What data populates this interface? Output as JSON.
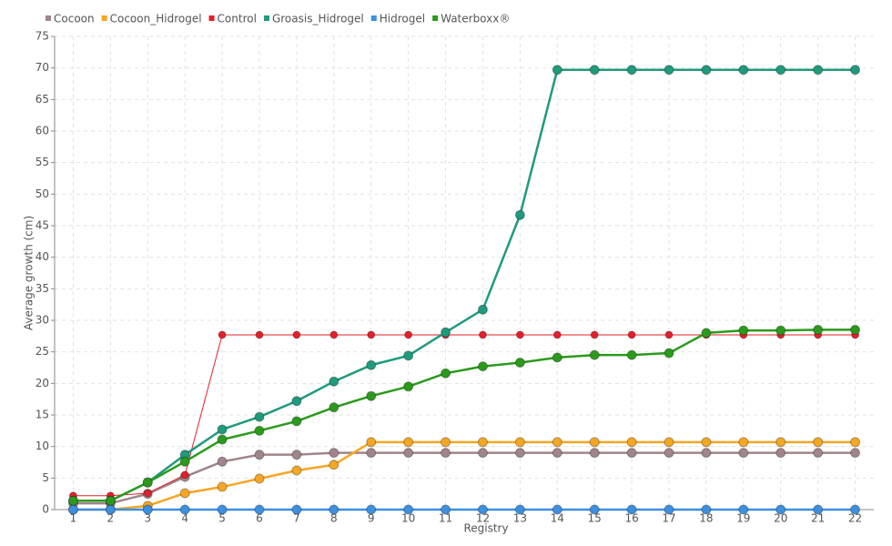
{
  "chart_data": {
    "type": "line",
    "x_label": "Registry",
    "y_label": "Average growth (cm)",
    "categories": [
      "1",
      "2",
      "3",
      "4",
      "5",
      "6",
      "7",
      "8",
      "9",
      "10",
      "11",
      "12",
      "13",
      "14",
      "15",
      "16",
      "17",
      "18",
      "19",
      "20",
      "21",
      "22"
    ],
    "ylim": [
      0,
      75
    ],
    "yticks": [
      0,
      5,
      10,
      15,
      20,
      25,
      30,
      35,
      40,
      45,
      50,
      55,
      60,
      65,
      70,
      75
    ],
    "grid": true,
    "legend": "top-left",
    "series": [
      {
        "name": "Cocoon",
        "color": "#a0858a",
        "values": [
          1.0,
          1.0,
          2.5,
          5.2,
          7.6,
          8.7,
          8.7,
          9.0,
          9.0,
          9.0,
          9.0,
          9.0,
          9.0,
          9.0,
          9.0,
          9.0,
          9.0,
          9.0,
          9.0,
          9.0,
          9.0,
          9.0
        ]
      },
      {
        "name": "Cocoon_Hidrogel",
        "color": "#f5a623",
        "values": [
          0,
          0,
          0.6,
          2.6,
          3.6,
          4.9,
          6.2,
          7.1,
          10.7,
          10.7,
          10.7,
          10.7,
          10.7,
          10.7,
          10.7,
          10.7,
          10.7,
          10.7,
          10.7,
          10.7,
          10.7,
          10.7
        ]
      },
      {
        "name": "Control",
        "color": "#e3202a",
        "values": [
          2.2,
          2.2,
          2.6,
          5.5,
          27.7,
          27.7,
          27.7,
          27.7,
          27.7,
          27.7,
          27.7,
          27.7,
          27.7,
          27.7,
          27.7,
          27.7,
          27.7,
          27.7,
          27.7,
          27.7,
          27.7,
          27.7
        ]
      },
      {
        "name": "Groasis_Hidrogel",
        "color": "#1f9a7c",
        "values": [
          1.4,
          1.4,
          4.3,
          8.7,
          12.7,
          14.7,
          17.2,
          20.3,
          22.9,
          24.4,
          28.1,
          31.7,
          46.7,
          69.7,
          69.7,
          69.7,
          69.7,
          69.7,
          69.7,
          69.7,
          69.7,
          69.7
        ]
      },
      {
        "name": "Hidrogel",
        "color": "#3d8fe0",
        "values": [
          0,
          0,
          0,
          0,
          0,
          0,
          0,
          0,
          0,
          0,
          0,
          0,
          0,
          0,
          0,
          0,
          0,
          0,
          0,
          0,
          0,
          0
        ]
      },
      {
        "name": "Waterboxx®",
        "color": "#2b9a1c",
        "values": [
          1.4,
          1.4,
          4.3,
          7.6,
          11.1,
          12.5,
          14.0,
          16.2,
          18.0,
          19.5,
          21.6,
          22.7,
          23.3,
          24.1,
          24.5,
          24.5,
          24.8,
          28.0,
          28.4,
          28.4,
          28.5,
          28.5
        ]
      }
    ]
  }
}
